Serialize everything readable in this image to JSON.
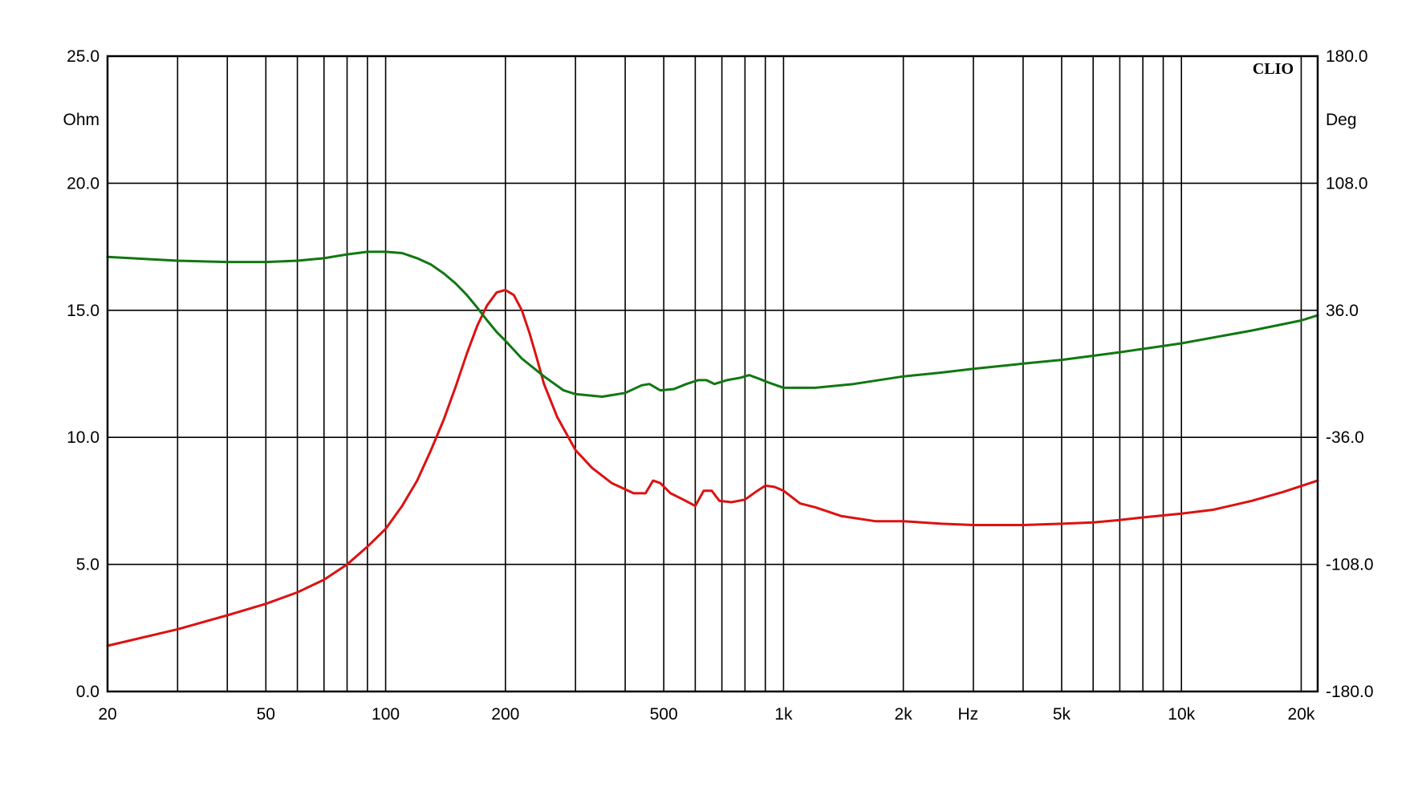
{
  "chart_data": {
    "type": "line",
    "brand": "CLIO",
    "x_axis": {
      "unit_label": "Hz",
      "scale": "log",
      "range": [
        20,
        22000
      ],
      "tick_labels": [
        {
          "value": 20,
          "label": "20"
        },
        {
          "value": 50,
          "label": "50"
        },
        {
          "value": 100,
          "label": "100"
        },
        {
          "value": 200,
          "label": "200"
        },
        {
          "value": 500,
          "label": "500"
        },
        {
          "value": 1000,
          "label": "1k"
        },
        {
          "value": 2000,
          "label": "2k"
        },
        {
          "value": 5000,
          "label": "5k"
        },
        {
          "value": 10000,
          "label": "10k"
        },
        {
          "value": 20000,
          "label": "20k"
        }
      ]
    },
    "y_left": {
      "unit_label": "Ohm",
      "range": [
        0,
        25
      ],
      "tick_labels": [
        "0.0",
        "5.0",
        "10.0",
        "15.0",
        "20.0",
        "25.0"
      ]
    },
    "y_right": {
      "unit_label": "Deg",
      "range": [
        -180,
        180
      ],
      "tick_labels": [
        "-180.0",
        "-108.0",
        "-36.0",
        "36.0",
        "108.0",
        "180.0"
      ]
    },
    "grid": true,
    "series": [
      {
        "axis": "left",
        "color": "#dd1111",
        "points": [
          [
            20,
            1.8
          ],
          [
            30,
            2.45
          ],
          [
            40,
            3.0
          ],
          [
            50,
            3.45
          ],
          [
            60,
            3.9
          ],
          [
            70,
            4.4
          ],
          [
            80,
            5.0
          ],
          [
            90,
            5.7
          ],
          [
            100,
            6.4
          ],
          [
            110,
            7.3
          ],
          [
            120,
            8.3
          ],
          [
            130,
            9.5
          ],
          [
            140,
            10.7
          ],
          [
            150,
            12.0
          ],
          [
            160,
            13.3
          ],
          [
            170,
            14.4
          ],
          [
            180,
            15.2
          ],
          [
            190,
            15.7
          ],
          [
            200,
            15.8
          ],
          [
            210,
            15.6
          ],
          [
            220,
            15.0
          ],
          [
            230,
            14.1
          ],
          [
            240,
            13.1
          ],
          [
            250,
            12.1
          ],
          [
            270,
            10.8
          ],
          [
            300,
            9.5
          ],
          [
            330,
            8.8
          ],
          [
            370,
            8.2
          ],
          [
            420,
            7.8
          ],
          [
            450,
            7.8
          ],
          [
            470,
            8.3
          ],
          [
            490,
            8.2
          ],
          [
            520,
            7.8
          ],
          [
            560,
            7.55
          ],
          [
            600,
            7.3
          ],
          [
            630,
            7.9
          ],
          [
            660,
            7.9
          ],
          [
            690,
            7.5
          ],
          [
            740,
            7.45
          ],
          [
            800,
            7.55
          ],
          [
            860,
            7.9
          ],
          [
            900,
            8.1
          ],
          [
            950,
            8.05
          ],
          [
            1000,
            7.9
          ],
          [
            1100,
            7.4
          ],
          [
            1200,
            7.25
          ],
          [
            1400,
            6.9
          ],
          [
            1700,
            6.7
          ],
          [
            2000,
            6.7
          ],
          [
            2500,
            6.6
          ],
          [
            3000,
            6.55
          ],
          [
            4000,
            6.55
          ],
          [
            5000,
            6.6
          ],
          [
            6000,
            6.65
          ],
          [
            7000,
            6.75
          ],
          [
            8000,
            6.85
          ],
          [
            10000,
            7.0
          ],
          [
            12000,
            7.15
          ],
          [
            15000,
            7.5
          ],
          [
            18000,
            7.85
          ],
          [
            22000,
            8.3
          ]
        ]
      },
      {
        "axis": "left",
        "color": "#117711",
        "points": [
          [
            20,
            17.1
          ],
          [
            30,
            16.95
          ],
          [
            40,
            16.9
          ],
          [
            50,
            16.9
          ],
          [
            60,
            16.95
          ],
          [
            70,
            17.05
          ],
          [
            80,
            17.2
          ],
          [
            90,
            17.3
          ],
          [
            100,
            17.3
          ],
          [
            110,
            17.25
          ],
          [
            120,
            17.05
          ],
          [
            130,
            16.8
          ],
          [
            140,
            16.45
          ],
          [
            150,
            16.05
          ],
          [
            160,
            15.6
          ],
          [
            170,
            15.1
          ],
          [
            180,
            14.6
          ],
          [
            190,
            14.15
          ],
          [
            200,
            13.8
          ],
          [
            220,
            13.1
          ],
          [
            250,
            12.4
          ],
          [
            280,
            11.85
          ],
          [
            300,
            11.7
          ],
          [
            350,
            11.6
          ],
          [
            400,
            11.75
          ],
          [
            440,
            12.05
          ],
          [
            460,
            12.1
          ],
          [
            490,
            11.85
          ],
          [
            530,
            11.9
          ],
          [
            570,
            12.1
          ],
          [
            610,
            12.25
          ],
          [
            640,
            12.25
          ],
          [
            670,
            12.1
          ],
          [
            720,
            12.25
          ],
          [
            780,
            12.35
          ],
          [
            820,
            12.45
          ],
          [
            870,
            12.3
          ],
          [
            920,
            12.15
          ],
          [
            1000,
            11.95
          ],
          [
            1200,
            11.95
          ],
          [
            1500,
            12.1
          ],
          [
            2000,
            12.4
          ],
          [
            2500,
            12.55
          ],
          [
            3000,
            12.7
          ],
          [
            4000,
            12.9
          ],
          [
            5000,
            13.05
          ],
          [
            7000,
            13.35
          ],
          [
            10000,
            13.7
          ],
          [
            15000,
            14.2
          ],
          [
            20000,
            14.6
          ],
          [
            22000,
            14.8
          ]
        ]
      }
    ]
  }
}
